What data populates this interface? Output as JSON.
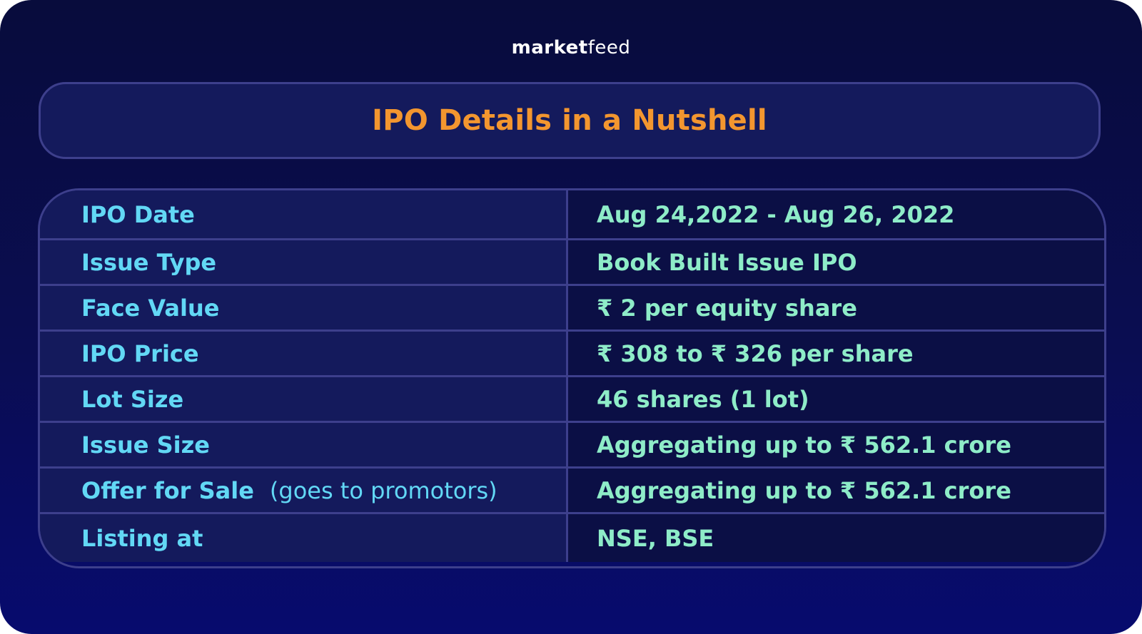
{
  "brand": {
    "logo_bold": "market",
    "logo_light": "feed"
  },
  "title": "IPO Details in a Nutshell",
  "rows": [
    {
      "label": "IPO Date",
      "note": "",
      "value": "Aug 24,2022 - Aug 26, 2022"
    },
    {
      "label": "Issue Type",
      "note": "",
      "value": "Book Built Issue IPO"
    },
    {
      "label": "Face Value",
      "note": "",
      "value": "₹ 2 per equity share"
    },
    {
      "label": "IPO Price",
      "note": "",
      "value": "₹ 308 to ₹ 326 per share"
    },
    {
      "label": "Lot Size",
      "note": "",
      "value": "46 shares (1 lot)"
    },
    {
      "label": "Issue Size",
      "note": "",
      "value": "Aggregating up to ₹ 562.1 crore"
    },
    {
      "label": "Offer for Sale",
      "note": "(goes to promotors)",
      "value": "Aggregating up to ₹ 562.1 crore"
    },
    {
      "label": "Listing at",
      "note": "",
      "value": "NSE, BSE"
    }
  ],
  "colors": {
    "title": "#f3962f",
    "label_text": "#62d8f5",
    "value_text": "#8eecc8",
    "border": "#3d3f8c",
    "background_top": "#080c3c",
    "background_bottom": "#070b6e"
  }
}
